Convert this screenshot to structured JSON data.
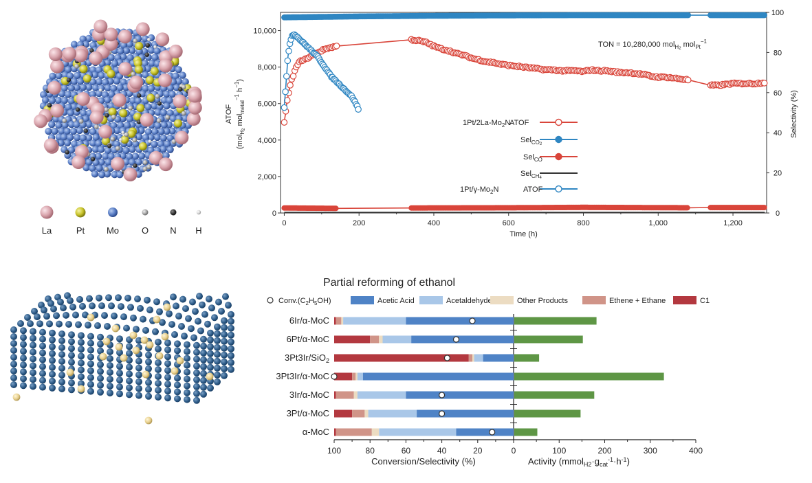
{
  "panel_a": {
    "legend_items": [
      {
        "symbol": "La",
        "color": "#d9a5ad"
      },
      {
        "symbol": "Pt",
        "color": "#c9c42a"
      },
      {
        "symbol": "Mo",
        "color": "#5b7fc6"
      },
      {
        "symbol": "O",
        "color": "#a8a8a8"
      },
      {
        "symbol": "N",
        "color": "#3a3a3a"
      },
      {
        "symbol": "H",
        "color": "#d8d8d8"
      }
    ]
  },
  "chart_data": [
    {
      "type": "line",
      "xlabel": "Time (h)",
      "ylabel_left": "ATOF (mol_H2 mol_metal^-1 h^-1)",
      "ylabel_left_main": "ATOF",
      "ylabel_left_sub": {
        "a": "(mol",
        "b": "H",
        "c": "2",
        "d": " mol",
        "e": "metal",
        "f": "−1",
        "g": " h",
        "h": "−1",
        "i": ")"
      },
      "ylabel_right": "Selectivity (%)",
      "xlim": [
        -10,
        1290
      ],
      "ylim_left": [
        0,
        11000
      ],
      "ylim_right": [
        0,
        100
      ],
      "x_ticks": [
        0,
        200,
        400,
        600,
        800,
        1000,
        1200
      ],
      "x_tick_labels": [
        "0",
        "200",
        "400",
        "600",
        "800",
        "1,000",
        "1,200"
      ],
      "y_ticks_left": [
        0,
        2000,
        4000,
        6000,
        8000,
        10000
      ],
      "y_tick_labels_left": [
        "0",
        "2,000",
        "4,000",
        "6,000",
        "8,000",
        "10,000"
      ],
      "y_ticks_right": [
        0,
        20,
        40,
        60,
        80,
        100
      ],
      "y_tick_labels_right": [
        "0",
        "20",
        "40",
        "60",
        "80",
        "100"
      ],
      "annotation": {
        "a": "TON = 10,280,000 mol",
        "b": "H",
        "c": "2",
        "d": " mol",
        "e": "Pt",
        "f": "−1"
      },
      "legend": {
        "group1": "1Pt/2La-Mo2N",
        "group1_parts": {
          "a": "1Pt/2La-Mo",
          "b": "2",
          "c": "N"
        },
        "group2_parts": {
          "a": "1Pt/γ-Mo",
          "b": "2",
          "c": "N"
        },
        "atof_label": "ATOF",
        "sel_co2": {
          "a": "Sel",
          "b": "CO",
          "c": "2"
        },
        "sel_co": {
          "a": "Sel",
          "b": "CO"
        },
        "sel_ch4": {
          "a": "Sel",
          "b": "CH",
          "c": "4"
        }
      },
      "series": [
        {
          "name": "1Pt/2La-Mo2N ATOF",
          "axis": "left",
          "color": "#d9453a",
          "x": [
            0,
            3,
            6,
            10,
            15,
            20,
            25,
            30,
            35,
            40,
            45,
            50,
            60,
            70,
            80,
            90,
            100,
            110,
            120,
            130,
            140,
            340,
            360,
            380,
            400,
            420,
            440,
            460,
            480,
            500,
            520,
            540,
            560,
            580,
            600,
            620,
            640,
            660,
            680,
            700,
            720,
            740,
            760,
            780,
            800,
            820,
            840,
            860,
            880,
            900,
            920,
            940,
            960,
            980,
            1000,
            1020,
            1040,
            1060,
            1080,
            1140,
            1160,
            1180,
            1200,
            1220,
            1240,
            1260,
            1280
          ],
          "y": [
            5000,
            5400,
            5900,
            6400,
            6900,
            7300,
            7600,
            7900,
            8100,
            8250,
            8350,
            8400,
            8450,
            8600,
            8700,
            8800,
            8900,
            9000,
            9050,
            9100,
            9150,
            9500,
            9450,
            9350,
            9150,
            9000,
            8900,
            8750,
            8650,
            8500,
            8400,
            8300,
            8250,
            8150,
            8100,
            8050,
            8000,
            7950,
            7900,
            7850,
            7850,
            7800,
            7800,
            7800,
            7750,
            7850,
            7800,
            7800,
            7750,
            7700,
            7700,
            7650,
            7600,
            7500,
            7450,
            7450,
            7400,
            7350,
            7300,
            7000,
            7000,
            7050,
            7100,
            7100,
            7100,
            7100,
            7150
          ]
        },
        {
          "name": "1Pt/γ-Mo2N ATOF",
          "axis": "left",
          "color": "#2f86c2",
          "x": [
            0,
            5,
            10,
            15,
            20,
            25,
            30,
            35,
            40,
            45,
            50,
            55,
            60,
            65,
            70,
            75,
            80,
            85,
            90,
            95,
            100,
            105,
            110,
            115,
            120,
            125,
            130,
            135,
            140,
            145,
            150,
            155,
            160,
            165,
            170,
            175,
            180,
            185,
            190,
            195,
            200
          ],
          "y": [
            5800,
            7200,
            8600,
            9300,
            9700,
            9800,
            9750,
            9650,
            9550,
            9450,
            9350,
            9250,
            9150,
            9050,
            8950,
            8850,
            8750,
            8650,
            8550,
            8400,
            8250,
            8100,
            7950,
            7800,
            7650,
            7500,
            7400,
            7300,
            7200,
            7100,
            7000,
            6900,
            6800,
            6700,
            6600,
            6500,
            6400,
            6250,
            6050,
            5850,
            5600
          ]
        },
        {
          "name": "Sel_CO2",
          "axis": "right",
          "color": "#2f86c2",
          "x": [
            0,
            200,
            400,
            600,
            800,
            1000,
            1200,
            1285
          ],
          "y": [
            97.5,
            98,
            98.3,
            98.5,
            98.6,
            98.6,
            98.6,
            98.6
          ]
        },
        {
          "name": "Sel_CO",
          "axis": "right",
          "color": "#d9453a",
          "x": [
            0,
            140,
            340,
            600,
            800,
            1080,
            1140,
            1285
          ],
          "y": [
            2.5,
            2.3,
            2.5,
            2.6,
            2.8,
            2.6,
            2.7,
            2.7
          ]
        },
        {
          "name": "Sel_CH4",
          "axis": "right",
          "color": "#333333",
          "x": [
            0,
            200,
            400,
            600,
            800,
            1000,
            1200,
            1285
          ],
          "y": [
            0.3,
            0.3,
            0.3,
            0.3,
            0.3,
            0.3,
            0.3,
            0.3
          ]
        }
      ]
    },
    {
      "type": "bar",
      "title": "Partial reforming of ethanol",
      "categories": [
        "6Ir/α-MoC",
        "6Pt/α-MoC",
        "3Pt3Ir/SiO2",
        "3Pt3Ir/α-MoC",
        "3Ir/α-MoC",
        "3Pt/α-MoC",
        "α-MoC"
      ],
      "category_label_parts": [
        {
          "a": "6Ir/α-MoC",
          "b": "",
          "c": ""
        },
        {
          "a": "6Pt/α-MoC",
          "b": "",
          "c": ""
        },
        {
          "a": "3Pt3Ir/SiO",
          "b": "2",
          "c": ""
        },
        {
          "a": "3Pt3Ir/α-MoC",
          "b": "",
          "c": ""
        },
        {
          "a": "3Ir/α-MoC",
          "b": "",
          "c": ""
        },
        {
          "a": "3Pt/α-MoC",
          "b": "",
          "c": ""
        },
        {
          "a": "α-MoC",
          "b": "",
          "c": ""
        }
      ],
      "selectivity_series": [
        {
          "name": "C1",
          "color": "#b3383f",
          "values": [
            1,
            20,
            75,
            10,
            1,
            10,
            1
          ]
        },
        {
          "name": "Ethene + Ethane",
          "color": "#d09488",
          "values": [
            3,
            5,
            2,
            2,
            10,
            7,
            20
          ]
        },
        {
          "name": "Other Products",
          "color": "#ecdcc2",
          "values": [
            1,
            2,
            1,
            1,
            2,
            2,
            4
          ]
        },
        {
          "name": "Acetaldehyde",
          "color": "#a9c7e8",
          "values": [
            35,
            16,
            5,
            3,
            27,
            27,
            43
          ]
        },
        {
          "name": "Acetic Acid",
          "color": "#4f83c6",
          "values": [
            60,
            57,
            17,
            84,
            60,
            54,
            32
          ]
        }
      ],
      "conversion_label": "Conv.(C2H5OH)",
      "conversion_label_parts": {
        "a": "Conv.(C",
        "b": "2",
        "c": "H",
        "d": "5",
        "e": "OH)"
      },
      "conversion": [
        23,
        32,
        37,
        100,
        40,
        40,
        12
      ],
      "activity_series": {
        "name": "Activity",
        "color": "#5e9645",
        "values": [
          182,
          152,
          56,
          330,
          177,
          147,
          52
        ]
      },
      "xlabel_left": "Conversion/Selectivity (%)",
      "xlabel_right": "Activity (mmolH2·gcat-1·h-1)",
      "xlabel_right_parts": {
        "a": "Activity (mmol",
        "b": "H2",
        "c": "·g",
        "d": "cat",
        "e": "-1",
        "f": "·h",
        "g": "-1",
        "h": ")"
      },
      "left_ticks": [
        100,
        80,
        60,
        40,
        20,
        0
      ],
      "right_ticks": [
        100,
        200,
        300,
        400
      ],
      "xlim_left": [
        100,
        0
      ],
      "xlim_right": [
        0,
        400
      ]
    }
  ]
}
